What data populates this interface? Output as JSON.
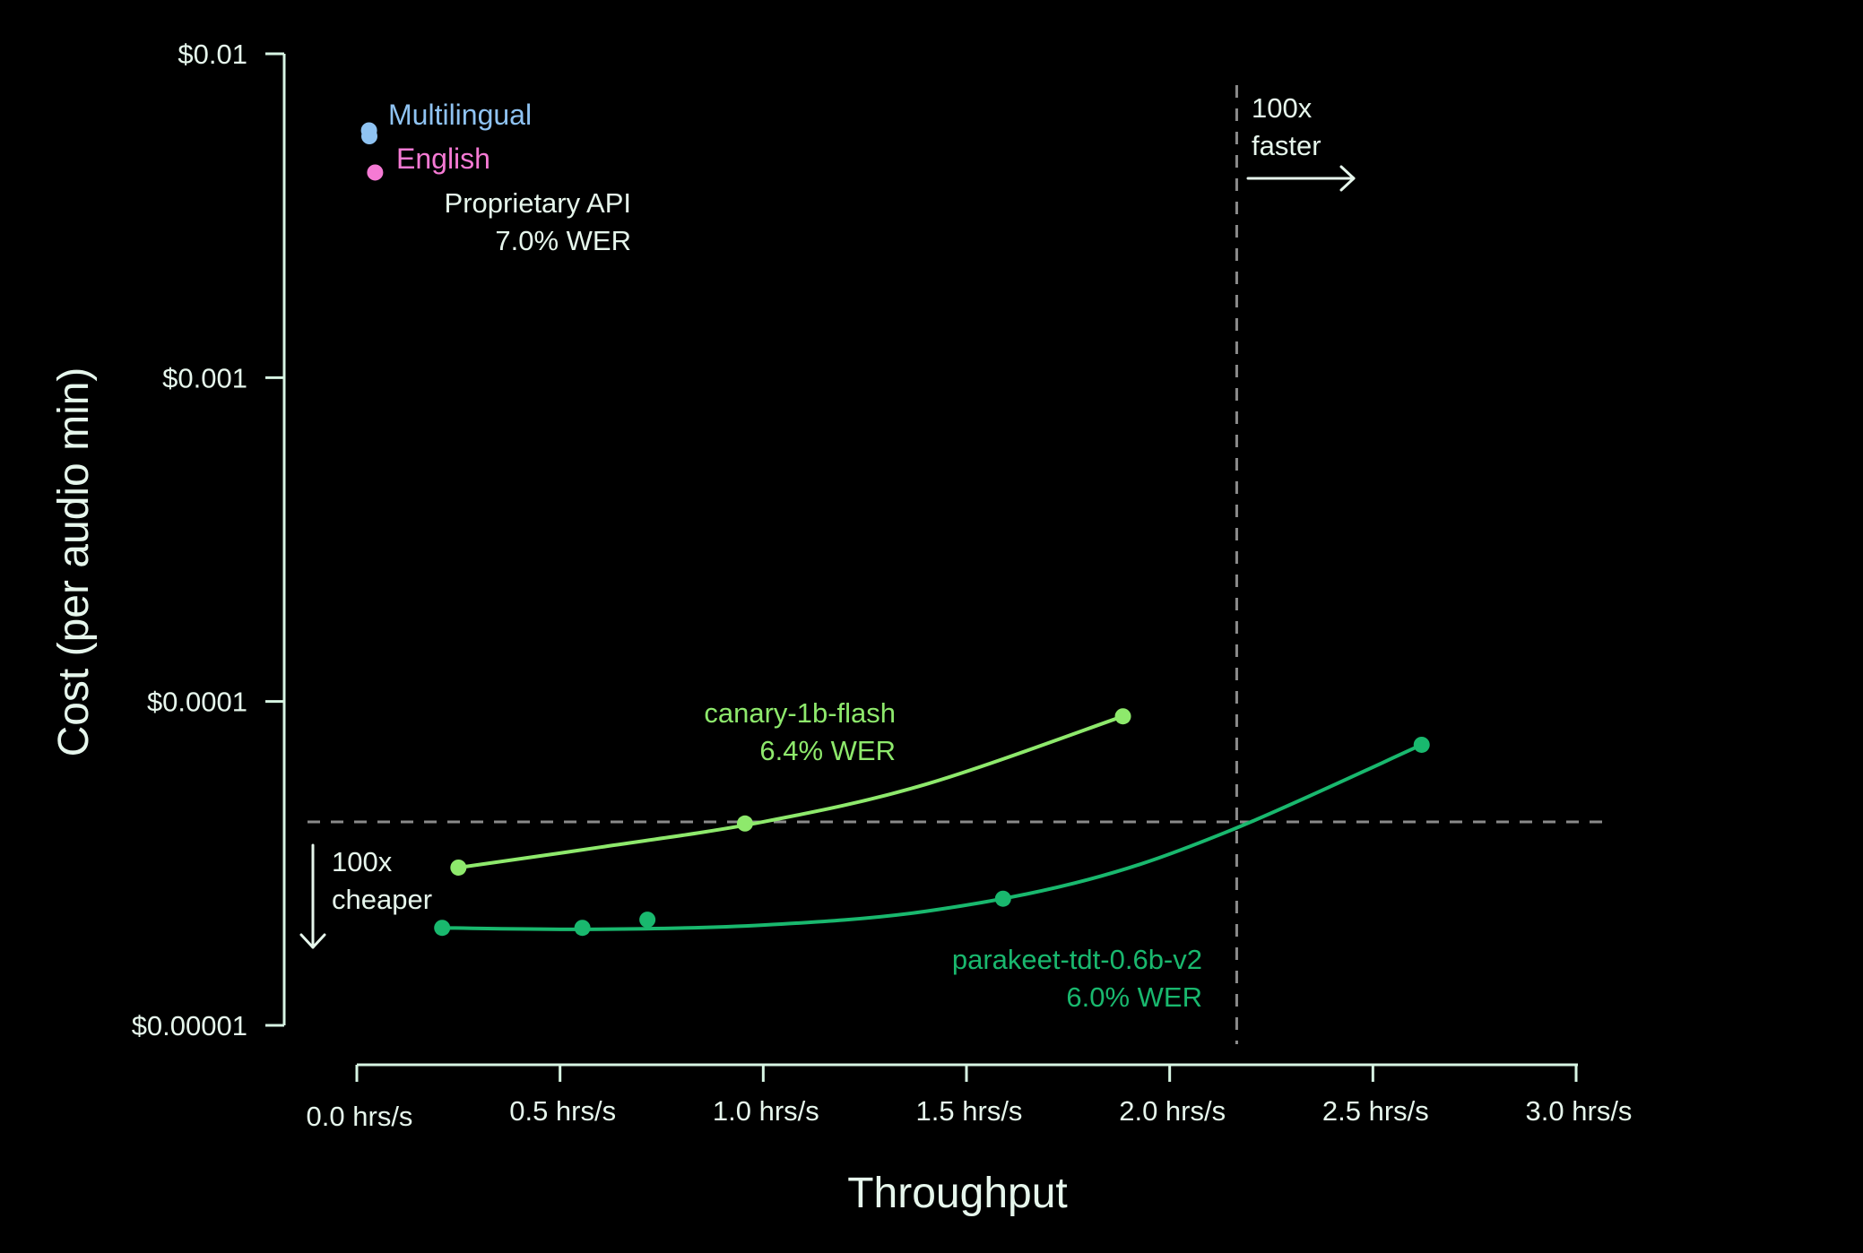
{
  "chart_data": {
    "type": "scatter",
    "title": "",
    "xlabel": "Throughput",
    "ylabel": "Cost (per audio min)",
    "x_scale": "linear",
    "y_scale": "log",
    "xlim": [
      0,
      3
    ],
    "ylim": [
      1e-05,
      0.01
    ],
    "x_ticks": [
      0,
      0.5,
      1.0,
      1.5,
      2.0,
      2.5,
      3.0
    ],
    "x_tick_labels": [
      "0.0 hrs/s",
      "0.5 hrs/s",
      "1.0 hrs/s",
      "1.5 hrs/s",
      "2.0 hrs/s",
      "2.5 hrs/s",
      "3.0 hrs/s"
    ],
    "y_ticks": [
      0.01,
      0.001,
      0.0001,
      1e-05
    ],
    "y_tick_labels": [
      "$0.01",
      "$0.001",
      "$0.0001",
      "$0.00001"
    ],
    "grid": false,
    "legend": {
      "position": "top-left",
      "entries": [
        {
          "label": "Multilingual",
          "color": "#8fc3f2"
        },
        {
          "label": "English",
          "color": "#f57ad4"
        }
      ]
    },
    "series": [
      {
        "name": "Proprietary API",
        "label_line1": "Proprietary API",
        "label_line2": "7.0% WER",
        "points": [
          {
            "x": 0.03,
            "y": 0.0058,
            "color": "#8fc3f2"
          },
          {
            "x": 0.045,
            "y": 0.0043,
            "color": "#f57ad4"
          }
        ]
      },
      {
        "name": "canary-1b-flash",
        "label_line1": "canary-1b-flash",
        "label_line2": "6.4% WER",
        "color": "#8ee96c",
        "points": [
          {
            "x": 0.25,
            "y": 3.07e-05
          },
          {
            "x": 0.955,
            "y": 4.2e-05
          },
          {
            "x": 1.885,
            "y": 9e-05
          }
        ],
        "curve": [
          {
            "x": 0.25,
            "y": 3.07e-05
          },
          {
            "x": 0.6,
            "y": 3.55e-05
          },
          {
            "x": 1.0,
            "y": 4.25e-05
          },
          {
            "x": 1.4,
            "y": 5.55e-05
          },
          {
            "x": 1.885,
            "y": 9e-05
          }
        ]
      },
      {
        "name": "parakeet-tdt-0.6b-v2",
        "label_line1": "parakeet-tdt-0.6b-v2",
        "label_line2": "6.0% WER",
        "color": "#19b86e",
        "points": [
          {
            "x": 0.21,
            "y": 2e-05
          },
          {
            "x": 0.555,
            "y": 2e-05
          },
          {
            "x": 0.715,
            "y": 2.12e-05
          },
          {
            "x": 1.59,
            "y": 2.46e-05
          },
          {
            "x": 2.62,
            "y": 7.35e-05
          }
        ],
        "curve": [
          {
            "x": 0.21,
            "y": 2e-05
          },
          {
            "x": 0.6,
            "y": 1.98e-05
          },
          {
            "x": 1.0,
            "y": 2.04e-05
          },
          {
            "x": 1.4,
            "y": 2.25e-05
          },
          {
            "x": 1.8,
            "y": 2.82e-05
          },
          {
            "x": 2.15,
            "y": 4e-05
          },
          {
            "x": 2.62,
            "y": 7.35e-05
          }
        ]
      }
    ],
    "reference_lines": [
      {
        "orientation": "vertical",
        "x": 2.165,
        "label_line1": "100x",
        "label_line2": "faster"
      },
      {
        "orientation": "horizontal",
        "y": 4.25e-05,
        "label_line1": "100x",
        "label_line2": "cheaper"
      }
    ]
  },
  "colors": {
    "background": "#000000",
    "axis": "#d7f5e3",
    "text": "#e6f6ec",
    "dashed": "#8a8a8a",
    "multilingual": "#8fc3f2",
    "english": "#f57ad4",
    "canary": "#8ee96c",
    "parakeet": "#19b86e"
  }
}
